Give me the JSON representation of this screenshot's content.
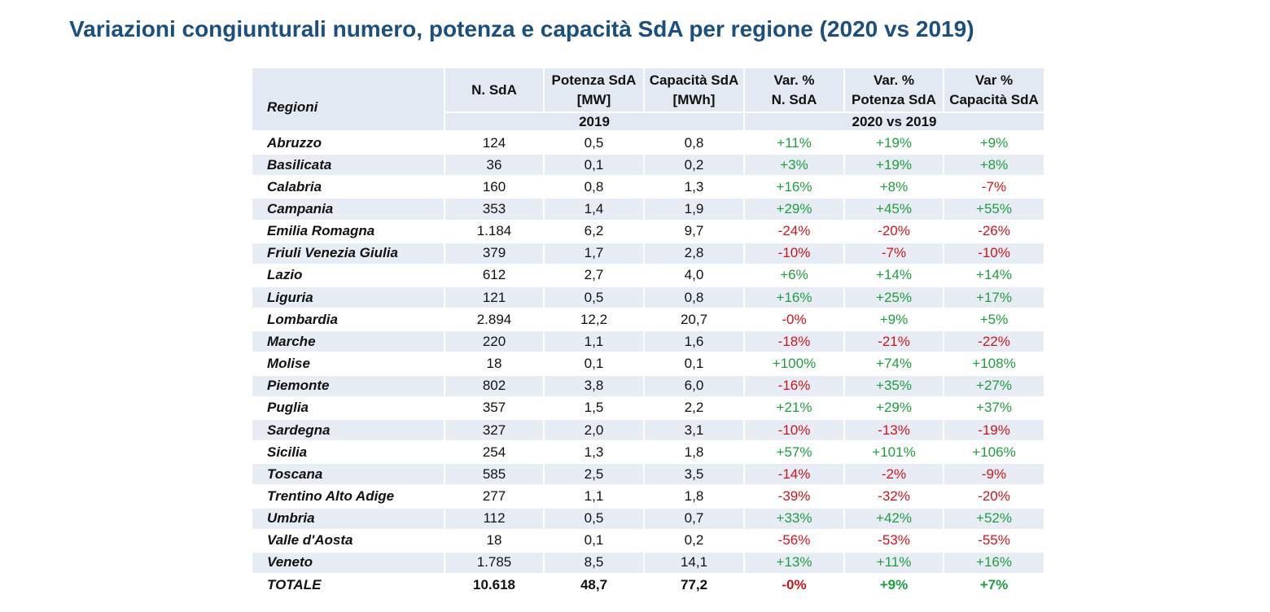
{
  "title": "Variazioni congiunturali numero, potenza e capacità SdA per regione (2020 vs 2019)",
  "table": {
    "headers": [
      [
        "Regioni"
      ],
      [
        "N. SdA"
      ],
      [
        "Potenza SdA",
        "[MW]"
      ],
      [
        "Capacità SdA",
        "[MWh]"
      ],
      [
        "Var. %",
        "N. SdA"
      ],
      [
        "Var. %",
        "Potenza SdA"
      ],
      [
        "Var %",
        "Capacità SdA"
      ]
    ],
    "groups": [
      "2019",
      "2020 vs 2019"
    ],
    "rows": [
      [
        "Abruzzo",
        "124",
        "0,5",
        "0,8",
        "+11%",
        "+19%",
        "+9%"
      ],
      [
        "Basilicata",
        "36",
        "0,1",
        "0,2",
        "+3%",
        "+19%",
        "+8%"
      ],
      [
        "Calabria",
        "160",
        "0,8",
        "1,3",
        "+16%",
        "+8%",
        "-7%"
      ],
      [
        "Campania",
        "353",
        "1,4",
        "1,9",
        "+29%",
        "+45%",
        "+55%"
      ],
      [
        "Emilia Romagna",
        "1.184",
        "6,2",
        "9,7",
        "-24%",
        "-20%",
        "-26%"
      ],
      [
        "Friuli Venezia Giulia",
        "379",
        "1,7",
        "2,8",
        "-10%",
        "-7%",
        "-10%"
      ],
      [
        "Lazio",
        "612",
        "2,7",
        "4,0",
        "+6%",
        "+14%",
        "+14%"
      ],
      [
        "Liguria",
        "121",
        "0,5",
        "0,8",
        "+16%",
        "+25%",
        "+17%"
      ],
      [
        "Lombardia",
        "2.894",
        "12,2",
        "20,7",
        "-0%",
        "+9%",
        "+5%"
      ],
      [
        "Marche",
        "220",
        "1,1",
        "1,6",
        "-18%",
        "-21%",
        "-22%"
      ],
      [
        "Molise",
        "18",
        "0,1",
        "0,1",
        "+100%",
        "+74%",
        "+108%"
      ],
      [
        "Piemonte",
        "802",
        "3,8",
        "6,0",
        "-16%",
        "+35%",
        "+27%"
      ],
      [
        "Puglia",
        "357",
        "1,5",
        "2,2",
        "+21%",
        "+29%",
        "+37%"
      ],
      [
        "Sardegna",
        "327",
        "2,0",
        "3,1",
        "-10%",
        "-13%",
        "-19%"
      ],
      [
        "Sicilia",
        "254",
        "1,3",
        "1,8",
        "+57%",
        "+101%",
        "+106%"
      ],
      [
        "Toscana",
        "585",
        "2,5",
        "3,5",
        "-14%",
        "-2%",
        "-9%"
      ],
      [
        "Trentino Alto Adige",
        "277",
        "1,1",
        "1,8",
        "-39%",
        "-32%",
        "-20%"
      ],
      [
        "Umbria",
        "112",
        "0,5",
        "0,7",
        "+33%",
        "+42%",
        "+52%"
      ],
      [
        "Valle d'Aosta",
        "18",
        "0,1",
        "0,2",
        "-56%",
        "-53%",
        "-55%"
      ],
      [
        "Veneto",
        "1.785",
        "8,5",
        "14,1",
        "+13%",
        "+11%",
        "+16%"
      ]
    ],
    "total": [
      "TOTALE",
      "10.618",
      "48,7",
      "77,2",
      "-0%",
      "+9%",
      "+7%"
    ]
  }
}
